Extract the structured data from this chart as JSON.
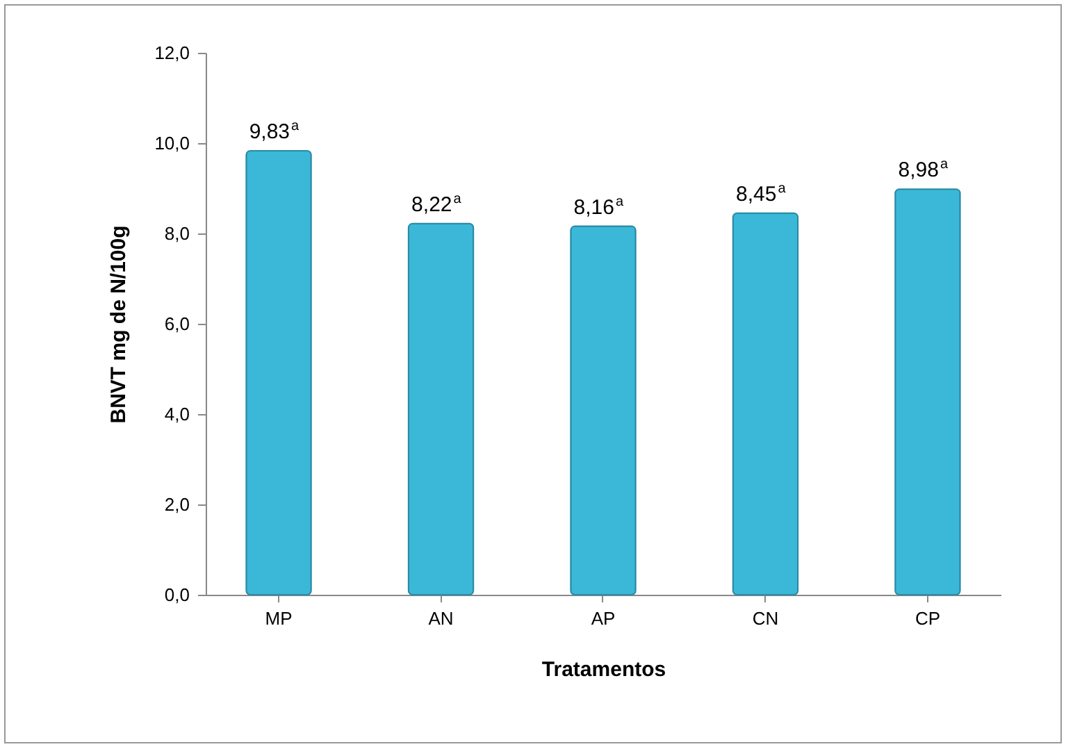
{
  "chart_data": {
    "type": "bar",
    "xlabel": "Tratamentos",
    "ylabel": "BNVT mg de N/100g",
    "categories": [
      "MP",
      "AN",
      "AP",
      "CN",
      "CP"
    ],
    "values": [
      9.83,
      8.22,
      8.16,
      8.45,
      8.98
    ],
    "color": "#3bb8d8",
    "value_labels": [
      "9,83$^{a}$",
      "8,22$^{a}$",
      "8,16$^{a}$",
      "8,45$^{a}$",
      "8,98$^{a}$"
    ],
    "ylim": [
      0,
      12
    ],
    "yticks": [
      {
        "value": 0,
        "label": "0,0"
      },
      {
        "value": 2,
        "label": "2,0"
      },
      {
        "value": 4,
        "label": "4,0"
      },
      {
        "value": 6,
        "label": "6,0"
      },
      {
        "value": 8,
        "label": "8,0"
      },
      {
        "value": 10,
        "label": "10,0"
      },
      {
        "value": 12,
        "label": "12,0"
      }
    ],
    "grid": false
  }
}
